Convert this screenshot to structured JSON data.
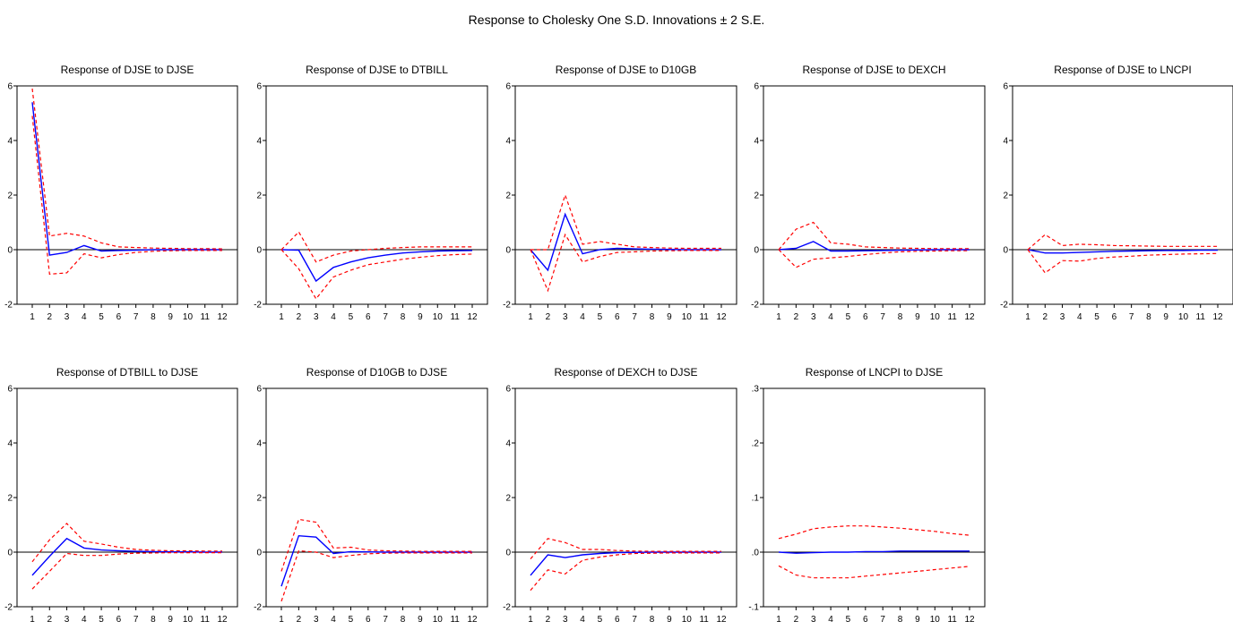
{
  "figure": {
    "title": "Response to Cholesky One S.D. Innovations ± 2 S.E."
  },
  "colors": {
    "response": "#0000ff",
    "bands": "#ff0000",
    "zero_line": "#000000",
    "frame": "#000000"
  },
  "chart_data": [
    {
      "type": "line",
      "title": "Response of DJSE to DJSE",
      "x": [
        1,
        2,
        3,
        4,
        5,
        6,
        7,
        8,
        9,
        10,
        11,
        12
      ],
      "ylim": [
        -2,
        6
      ],
      "yticks": [
        "-2",
        "0",
        "2",
        "4",
        "6"
      ],
      "series": [
        {
          "values": [
            5.4,
            -0.2,
            -0.1,
            0.15,
            -0.05,
            -0.03,
            -0.02,
            0,
            0,
            0,
            0,
            0
          ]
        },
        {
          "values": [
            5.9,
            0.5,
            0.6,
            0.5,
            0.25,
            0.1,
            0.08,
            0.06,
            0.05,
            0.04,
            0.04,
            0.03
          ]
        },
        {
          "values": [
            4.9,
            -0.9,
            -0.85,
            -0.15,
            -0.3,
            -0.18,
            -0.1,
            -0.06,
            -0.04,
            -0.03,
            -0.03,
            -0.03
          ]
        }
      ]
    },
    {
      "type": "line",
      "title": "Response of DJSE to DTBILL",
      "x": [
        1,
        2,
        3,
        4,
        5,
        6,
        7,
        8,
        9,
        10,
        11,
        12
      ],
      "ylim": [
        -2,
        6
      ],
      "yticks": [
        "-2",
        "0",
        "2",
        "4",
        "6"
      ],
      "series": [
        {
          "values": [
            0,
            -0.02,
            -1.15,
            -0.65,
            -0.45,
            -0.3,
            -0.2,
            -0.12,
            -0.08,
            -0.05,
            -0.04,
            -0.03
          ]
        },
        {
          "values": [
            0,
            0.65,
            -0.45,
            -0.2,
            -0.05,
            0,
            0.05,
            0.08,
            0.1,
            0.1,
            0.1,
            0.1
          ]
        },
        {
          "values": [
            0,
            -0.7,
            -1.8,
            -1.0,
            -0.75,
            -0.55,
            -0.45,
            -0.35,
            -0.28,
            -0.22,
            -0.18,
            -0.16
          ]
        }
      ]
    },
    {
      "type": "line",
      "title": "Response of DJSE to D10GB",
      "x": [
        1,
        2,
        3,
        4,
        5,
        6,
        7,
        8,
        9,
        10,
        11,
        12
      ],
      "ylim": [
        -2,
        6
      ],
      "yticks": [
        "-2",
        "0",
        "2",
        "4",
        "6"
      ],
      "series": [
        {
          "values": [
            0,
            -0.75,
            1.3,
            -0.15,
            0,
            0.05,
            0.03,
            0.02,
            0.01,
            0,
            0,
            0
          ]
        },
        {
          "values": [
            0,
            0,
            2.0,
            0.2,
            0.3,
            0.2,
            0.1,
            0.08,
            0.06,
            0.05,
            0.05,
            0.05
          ]
        },
        {
          "values": [
            0,
            -1.5,
            0.55,
            -0.45,
            -0.25,
            -0.1,
            -0.08,
            -0.05,
            -0.04,
            -0.03,
            -0.03,
            -0.03
          ]
        }
      ]
    },
    {
      "type": "line",
      "title": "Response of DJSE to DEXCH",
      "x": [
        1,
        2,
        3,
        4,
        5,
        6,
        7,
        8,
        9,
        10,
        11,
        12
      ],
      "ylim": [
        -2,
        6
      ],
      "yticks": [
        "-2",
        "0",
        "2",
        "4",
        "6"
      ],
      "series": [
        {
          "values": [
            0,
            0.05,
            0.3,
            -0.05,
            -0.05,
            -0.04,
            -0.03,
            -0.02,
            -0.01,
            0,
            0,
            0
          ]
        },
        {
          "values": [
            0,
            0.75,
            1.0,
            0.25,
            0.2,
            0.1,
            0.08,
            0.06,
            0.05,
            0.04,
            0.04,
            0.04
          ]
        },
        {
          "values": [
            0,
            -0.65,
            -0.35,
            -0.3,
            -0.25,
            -0.18,
            -0.12,
            -0.08,
            -0.06,
            -0.05,
            -0.04,
            -0.04
          ]
        }
      ]
    },
    {
      "type": "line",
      "title": "Response of DJSE to LNCPI",
      "x": [
        1,
        2,
        3,
        4,
        5,
        6,
        7,
        8,
        9,
        10,
        11,
        12
      ],
      "ylim": [
        -2,
        6
      ],
      "yticks": [
        "-2",
        "0",
        "2",
        "4",
        "6"
      ],
      "series": [
        {
          "values": [
            0,
            -0.12,
            -0.12,
            -0.1,
            -0.08,
            -0.06,
            -0.05,
            -0.04,
            -0.03,
            -0.03,
            -0.02,
            -0.02
          ]
        },
        {
          "values": [
            0,
            0.55,
            0.15,
            0.2,
            0.18,
            0.15,
            0.14,
            0.13,
            0.12,
            0.12,
            0.12,
            0.12
          ]
        },
        {
          "values": [
            0,
            -0.85,
            -0.4,
            -0.42,
            -0.32,
            -0.27,
            -0.24,
            -0.2,
            -0.18,
            -0.16,
            -0.15,
            -0.14
          ]
        }
      ]
    },
    {
      "type": "line",
      "title": "Response of DTBILL to DJSE",
      "x": [
        1,
        2,
        3,
        4,
        5,
        6,
        7,
        8,
        9,
        10,
        11,
        12
      ],
      "ylim": [
        -2,
        6
      ],
      "yticks": [
        "-2",
        "0",
        "2",
        "4",
        "6"
      ],
      "series": [
        {
          "values": [
            -0.85,
            -0.15,
            0.5,
            0.15,
            0.08,
            0.05,
            0.03,
            0.02,
            0.01,
            0.01,
            0,
            0
          ]
        },
        {
          "values": [
            -0.35,
            0.45,
            1.05,
            0.4,
            0.3,
            0.18,
            0.1,
            0.07,
            0.05,
            0.05,
            0.04,
            0.04
          ]
        },
        {
          "values": [
            -1.35,
            -0.7,
            -0.05,
            -0.12,
            -0.12,
            -0.07,
            -0.04,
            -0.03,
            -0.02,
            -0.02,
            -0.02,
            -0.02
          ]
        }
      ]
    },
    {
      "type": "line",
      "title": "Response of D10GB to DJSE",
      "x": [
        1,
        2,
        3,
        4,
        5,
        6,
        7,
        8,
        9,
        10,
        11,
        12
      ],
      "ylim": [
        -2,
        6
      ],
      "yticks": [
        "-2",
        "0",
        "2",
        "4",
        "6"
      ],
      "series": [
        {
          "values": [
            -1.25,
            0.6,
            0.55,
            -0.05,
            0.02,
            0.01,
            0,
            0,
            0,
            0,
            0,
            0
          ]
        },
        {
          "values": [
            -0.7,
            1.2,
            1.1,
            0.15,
            0.18,
            0.08,
            0.05,
            0.04,
            0.03,
            0.03,
            0.03,
            0.03
          ]
        },
        {
          "values": [
            -1.8,
            0.05,
            0,
            -0.2,
            -0.12,
            -0.06,
            -0.04,
            -0.03,
            -0.03,
            -0.03,
            -0.03,
            -0.03
          ]
        }
      ]
    },
    {
      "type": "line",
      "title": "Response of DEXCH to DJSE",
      "x": [
        1,
        2,
        3,
        4,
        5,
        6,
        7,
        8,
        9,
        10,
        11,
        12
      ],
      "ylim": [
        -2,
        6
      ],
      "yticks": [
        "-2",
        "0",
        "2",
        "4",
        "6"
      ],
      "series": [
        {
          "values": [
            -0.85,
            -0.1,
            -0.2,
            -0.1,
            -0.05,
            -0.02,
            -0.01,
            0,
            0,
            0,
            0,
            0
          ]
        },
        {
          "values": [
            -0.25,
            0.5,
            0.35,
            0.1,
            0.1,
            0.06,
            0.04,
            0.03,
            0.03,
            0.03,
            0.03,
            0.03
          ]
        },
        {
          "values": [
            -1.4,
            -0.65,
            -0.8,
            -0.3,
            -0.18,
            -0.1,
            -0.05,
            -0.04,
            -0.03,
            -0.03,
            -0.03,
            -0.03
          ]
        }
      ]
    },
    {
      "type": "line",
      "title": "Response of LNCPI to DJSE",
      "x": [
        1,
        2,
        3,
        4,
        5,
        6,
        7,
        8,
        9,
        10,
        11,
        12
      ],
      "ylim": [
        -0.1,
        0.3
      ],
      "yticks": [
        "-.1",
        ".0",
        ".1",
        ".2",
        ".3"
      ],
      "series": [
        {
          "values": [
            0,
            -0.002,
            -0.001,
            0,
            0,
            0.001,
            0.001,
            0.002,
            0.002,
            0.002,
            0.002,
            0.002
          ]
        },
        {
          "values": [
            0.025,
            0.033,
            0.043,
            0.046,
            0.048,
            0.048,
            0.046,
            0.044,
            0.041,
            0.038,
            0.034,
            0.031
          ]
        },
        {
          "values": [
            -0.025,
            -0.042,
            -0.047,
            -0.047,
            -0.047,
            -0.044,
            -0.041,
            -0.038,
            -0.035,
            -0.032,
            -0.029,
            -0.026
          ]
        }
      ]
    }
  ]
}
